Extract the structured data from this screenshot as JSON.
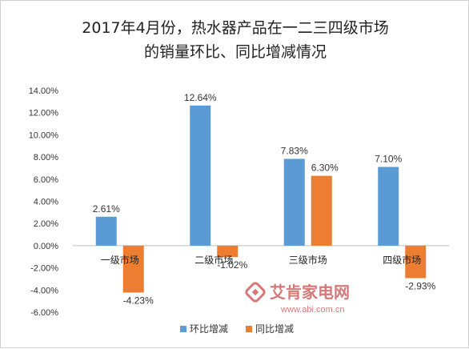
{
  "chart_data": {
    "type": "bar",
    "title_lines": [
      "2017年4月份，热水器产品在一二三四级市场",
      "的销量环比、同比增减情况"
    ],
    "categories": [
      "一级市场",
      "二级市场",
      "三级市场",
      "四级市场"
    ],
    "series": [
      {
        "name": "环比增减",
        "color": "#5b9bd5",
        "values": [
          2.61,
          12.64,
          7.83,
          7.1
        ],
        "labels": [
          "2.61%",
          "12.64%",
          "7.83%",
          "7.10%"
        ]
      },
      {
        "name": "同比增减",
        "color": "#ed7d31",
        "values": [
          -4.23,
          -1.02,
          6.3,
          -2.93
        ],
        "labels": [
          "-4.23%",
          "-1.02%",
          "6.30%",
          "-2.93%"
        ]
      }
    ],
    "ylim": [
      -6,
      14
    ],
    "yticks": [
      "14.00%",
      "12.00%",
      "10.00%",
      "8.00%",
      "6.00%",
      "4.00%",
      "2.00%",
      "0.00%",
      "-2.00%",
      "-4.00%",
      "-6.00%"
    ],
    "ytick_values": [
      14,
      12,
      10,
      8,
      6,
      4,
      2,
      0,
      -2,
      -4,
      -6
    ],
    "grid": false,
    "legend_position": "bottom"
  },
  "watermark": {
    "text": "艾肯家电网",
    "url": "www.abi.com.cn",
    "icon": "abi-logo-icon"
  }
}
